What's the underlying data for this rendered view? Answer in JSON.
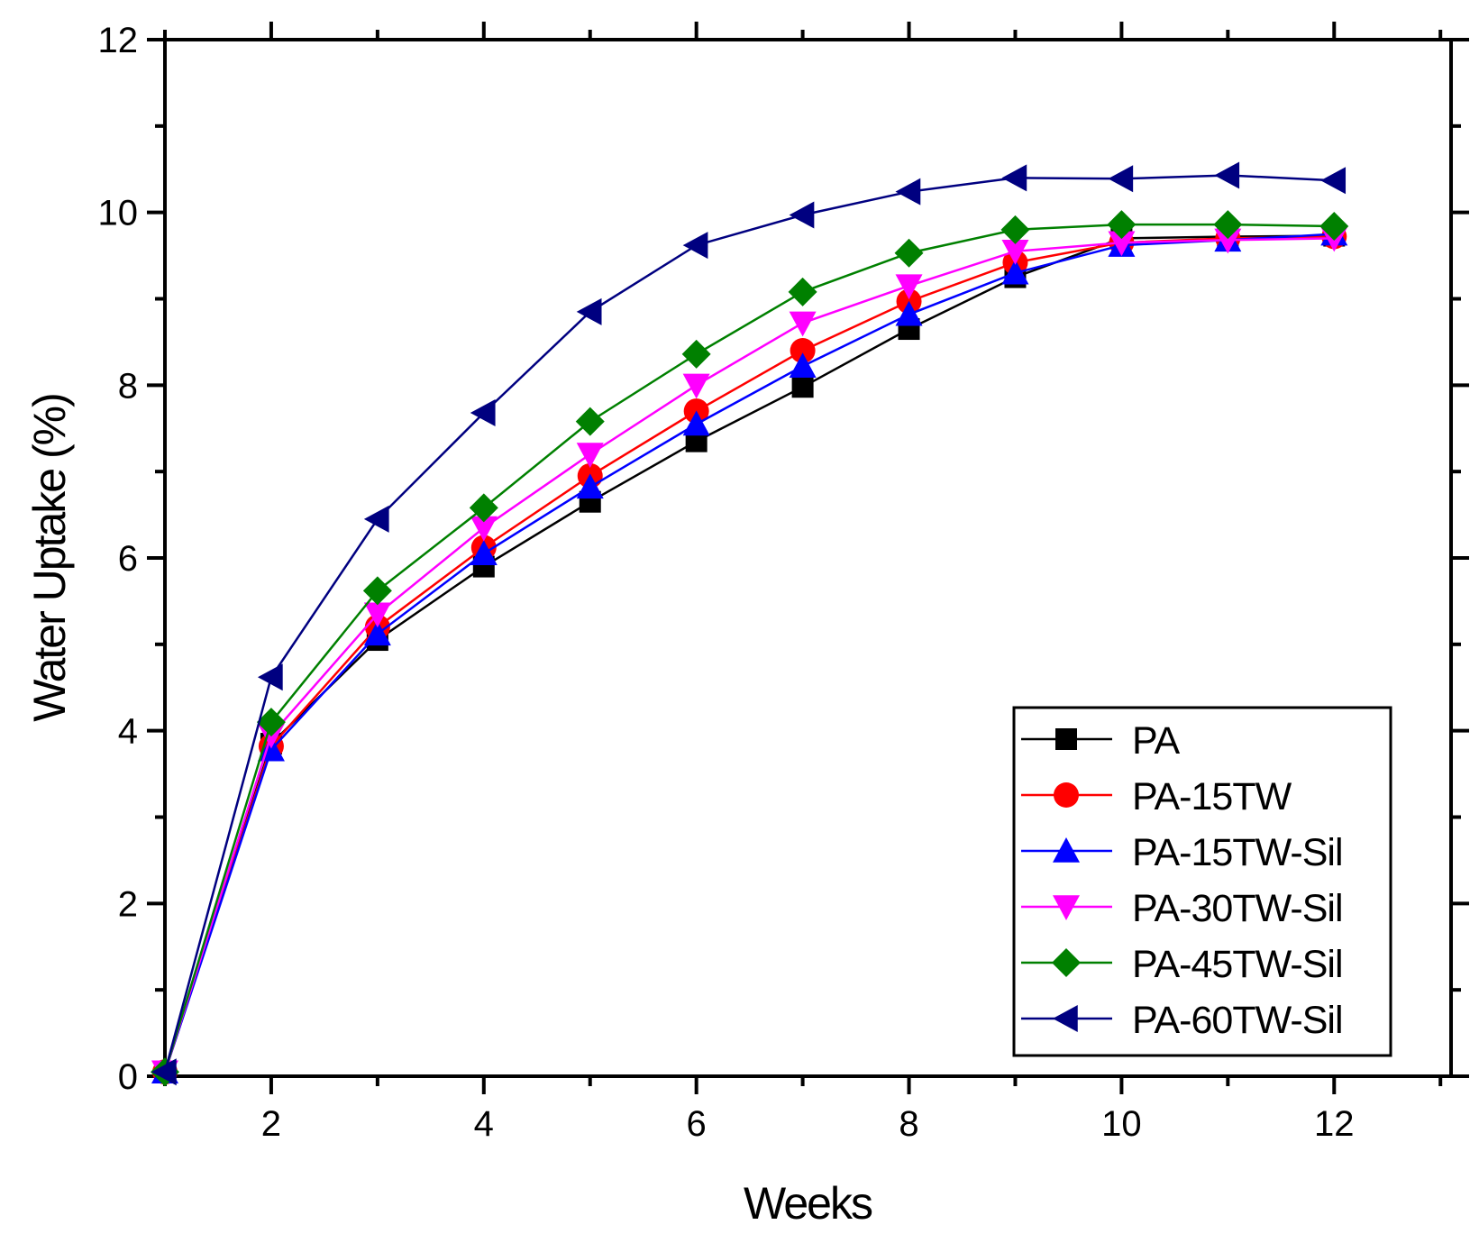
{
  "chart_data": {
    "type": "line",
    "title": "",
    "xlabel": "Weeks",
    "ylabel": "Water Uptake (%)",
    "xlim": [
      1,
      13.1
    ],
    "ylim": [
      0,
      12
    ],
    "xticks": [
      2,
      4,
      6,
      8,
      10,
      12
    ],
    "yticks": [
      0,
      2,
      4,
      6,
      8,
      10,
      12
    ],
    "x_tick_labels": [
      "2",
      "4",
      "6",
      "8",
      "10",
      "12"
    ],
    "y_tick_labels": [
      "0",
      "2",
      "4",
      "6",
      "8",
      "10",
      "12"
    ],
    "grid": false,
    "legend_position": "bottom-right",
    "x": [
      1,
      2,
      3,
      4,
      5,
      6,
      7,
      8,
      9,
      10,
      11,
      12
    ],
    "series": [
      {
        "name": "PA",
        "color": "#000000",
        "marker": "square",
        "values": [
          0.05,
          3.85,
          5.05,
          5.9,
          6.65,
          7.35,
          7.98,
          8.65,
          9.25,
          9.7,
          9.72,
          9.73
        ]
      },
      {
        "name": "PA-15TW",
        "color": "#ff0000",
        "marker": "circle",
        "values": [
          0.05,
          3.82,
          5.2,
          6.12,
          6.95,
          7.7,
          8.4,
          8.97,
          9.42,
          9.65,
          9.7,
          9.72
        ]
      },
      {
        "name": "PA-15TW-Sil",
        "color": "#0000ff",
        "marker": "triangle-up",
        "values": [
          0.05,
          3.78,
          5.12,
          6.05,
          6.82,
          7.55,
          8.22,
          8.82,
          9.3,
          9.62,
          9.68,
          9.75
        ]
      },
      {
        "name": "PA-30TW-Sil",
        "color": "#ff00ff",
        "marker": "triangle-down",
        "values": [
          0.05,
          3.95,
          5.35,
          6.35,
          7.2,
          8.0,
          8.72,
          9.15,
          9.55,
          9.65,
          9.68,
          9.7
        ]
      },
      {
        "name": "PA-45TW-Sil",
        "color": "#008000",
        "marker": "diamond",
        "values": [
          0.05,
          4.1,
          5.62,
          6.58,
          7.58,
          8.36,
          9.08,
          9.53,
          9.8,
          9.86,
          9.86,
          9.84
        ]
      },
      {
        "name": "PA-60TW-Sil",
        "color": "#000080",
        "marker": "triangle-left",
        "values": [
          0.05,
          4.62,
          6.45,
          7.68,
          8.85,
          9.62,
          9.97,
          10.24,
          10.4,
          10.39,
          10.43,
          10.37
        ]
      }
    ]
  }
}
